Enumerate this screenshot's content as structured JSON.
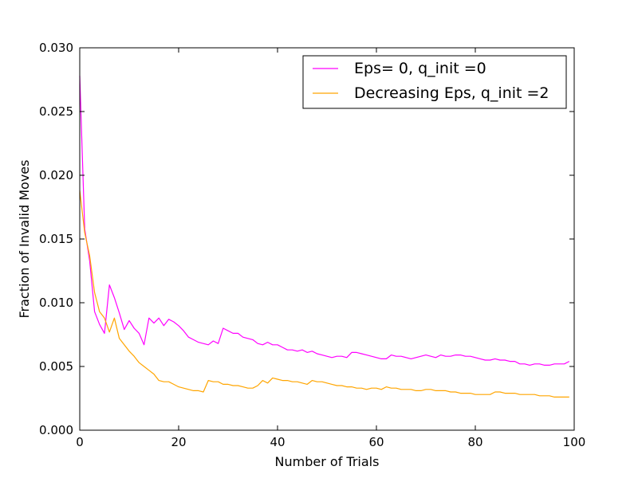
{
  "chart_data": {
    "type": "line",
    "xlabel": "Number of Trials",
    "ylabel": "Fraction of Invalid Moves",
    "xlim": [
      0,
      100
    ],
    "ylim": [
      0,
      0.03
    ],
    "xticks": [
      0,
      20,
      40,
      60,
      80,
      100
    ],
    "xtick_labels": [
      "0",
      "20",
      "40",
      "60",
      "80",
      "100"
    ],
    "yticks": [
      0,
      0.005,
      0.01,
      0.015,
      0.02,
      0.025,
      0.03
    ],
    "ytick_labels": [
      "0.000",
      "0.005",
      "0.010",
      "0.015",
      "0.020",
      "0.025",
      "0.030"
    ],
    "grid": false,
    "legend_position": "top-right",
    "x": [
      0,
      1,
      2,
      3,
      4,
      5,
      6,
      7,
      8,
      9,
      10,
      11,
      12,
      13,
      14,
      15,
      16,
      17,
      18,
      19,
      20,
      21,
      22,
      23,
      24,
      25,
      26,
      27,
      28,
      29,
      30,
      31,
      32,
      33,
      34,
      35,
      36,
      37,
      38,
      39,
      40,
      41,
      42,
      43,
      44,
      45,
      46,
      47,
      48,
      49,
      50,
      51,
      52,
      53,
      54,
      55,
      56,
      57,
      58,
      59,
      60,
      61,
      62,
      63,
      64,
      65,
      66,
      67,
      68,
      69,
      70,
      71,
      72,
      73,
      74,
      75,
      76,
      77,
      78,
      79,
      80,
      81,
      82,
      83,
      84,
      85,
      86,
      87,
      88,
      89,
      90,
      91,
      92,
      93,
      94,
      95,
      96,
      97,
      98,
      99
    ],
    "series": [
      {
        "name": "Eps= 0, q_init =0",
        "color": "#ff00ff",
        "values": [
          0.0278,
          0.0158,
          0.0133,
          0.0093,
          0.0083,
          0.0076,
          0.0114,
          0.0104,
          0.0092,
          0.0079,
          0.0086,
          0.008,
          0.0076,
          0.0067,
          0.0088,
          0.0084,
          0.0088,
          0.0082,
          0.0087,
          0.0085,
          0.0082,
          0.0078,
          0.0073,
          0.0071,
          0.0069,
          0.0068,
          0.0067,
          0.007,
          0.0068,
          0.008,
          0.0078,
          0.0076,
          0.0076,
          0.0073,
          0.0072,
          0.0071,
          0.0068,
          0.0067,
          0.0069,
          0.0067,
          0.0067,
          0.0065,
          0.0063,
          0.0063,
          0.0062,
          0.0063,
          0.0061,
          0.0062,
          0.006,
          0.0059,
          0.0058,
          0.0057,
          0.0058,
          0.0058,
          0.0057,
          0.0061,
          0.0061,
          0.006,
          0.0059,
          0.0058,
          0.0057,
          0.0056,
          0.0056,
          0.0059,
          0.0058,
          0.0058,
          0.0057,
          0.0056,
          0.0057,
          0.0058,
          0.0059,
          0.0058,
          0.0057,
          0.0059,
          0.0058,
          0.0058,
          0.0059,
          0.0059,
          0.0058,
          0.0058,
          0.0057,
          0.0056,
          0.0055,
          0.0055,
          0.0056,
          0.0055,
          0.0055,
          0.0054,
          0.0054,
          0.0052,
          0.0052,
          0.0051,
          0.0052,
          0.0052,
          0.0051,
          0.0051,
          0.0052,
          0.0052,
          0.0052,
          0.0054
        ]
      },
      {
        "name": "Decreasing Eps, q_init =2",
        "color": "#ffa500",
        "values": [
          0.0188,
          0.0155,
          0.0137,
          0.0108,
          0.0093,
          0.0088,
          0.0077,
          0.0088,
          0.0072,
          0.0067,
          0.0062,
          0.0058,
          0.0053,
          0.005,
          0.0047,
          0.0044,
          0.0039,
          0.0038,
          0.0038,
          0.0036,
          0.0034,
          0.0033,
          0.0032,
          0.0031,
          0.0031,
          0.003,
          0.0039,
          0.0038,
          0.0038,
          0.0036,
          0.0036,
          0.0035,
          0.0035,
          0.0034,
          0.0033,
          0.0033,
          0.0035,
          0.0039,
          0.0037,
          0.0041,
          0.004,
          0.0039,
          0.0039,
          0.0038,
          0.0038,
          0.0037,
          0.0036,
          0.0039,
          0.0038,
          0.0038,
          0.0037,
          0.0036,
          0.0035,
          0.0035,
          0.0034,
          0.0034,
          0.0033,
          0.0033,
          0.0032,
          0.0033,
          0.0033,
          0.0032,
          0.0034,
          0.0033,
          0.0033,
          0.0032,
          0.0032,
          0.0032,
          0.0031,
          0.0031,
          0.0032,
          0.0032,
          0.0031,
          0.0031,
          0.0031,
          0.003,
          0.003,
          0.0029,
          0.0029,
          0.0029,
          0.0028,
          0.0028,
          0.0028,
          0.0028,
          0.003,
          0.003,
          0.0029,
          0.0029,
          0.0029,
          0.0028,
          0.0028,
          0.0028,
          0.0028,
          0.0027,
          0.0027,
          0.0027,
          0.0026,
          0.0026,
          0.0026,
          0.0026
        ]
      }
    ]
  }
}
